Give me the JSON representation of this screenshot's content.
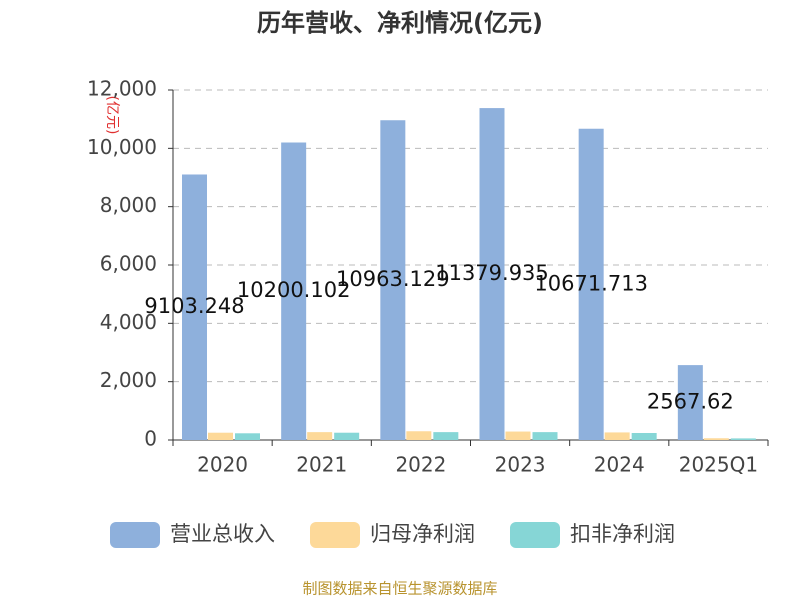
{
  "chart_data": {
    "type": "bar",
    "title": "历年营收、净利情况(亿元)",
    "y_axis_label": "(亿元)",
    "categories": [
      "2020",
      "2021",
      "2022",
      "2023",
      "2024",
      "2025Q1"
    ],
    "series": [
      {
        "name": "营业总收入",
        "color": "#8eb0dc",
        "values": [
          9103.248,
          10200.102,
          10963.129,
          11379.935,
          10671.713,
          2567.62
        ],
        "show_labels": true
      },
      {
        "name": "归母净利润",
        "color": "#fdd999",
        "values": [
          250,
          270,
          300,
          290,
          260,
          60
        ]
      },
      {
        "name": "扣非净利润",
        "color": "#86d6d6",
        "values": [
          230,
          250,
          270,
          270,
          240,
          55
        ]
      }
    ],
    "ylim": [
      0,
      12000
    ],
    "yticks": [
      0,
      {
        "value": 2000,
        "label": "2,000"
      },
      {
        "value": 4000,
        "label": "4,000"
      },
      {
        "value": 6000,
        "label": "6,000"
      },
      {
        "value": 8000,
        "label": "8,000"
      },
      {
        "value": 10000,
        "label": "10,000"
      },
      {
        "value": 12000,
        "label": "12,000"
      }
    ],
    "grid": true,
    "legend_position": "bottom",
    "source": "制图数据来自恒生聚源数据库"
  }
}
